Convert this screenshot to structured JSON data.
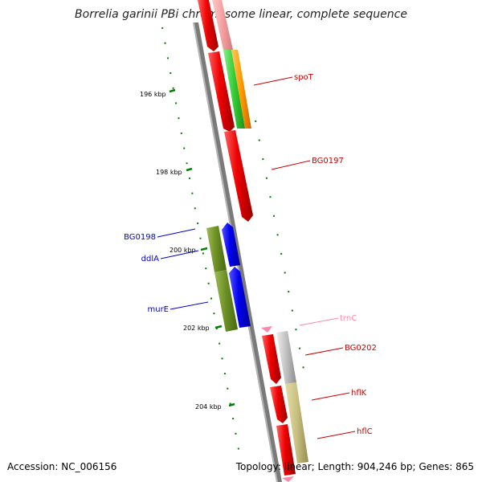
{
  "title": "Borrelia garinii PBi chromosome linear, complete sequence",
  "footer": {
    "accession": "Accession: NC_006156",
    "summary": "Topology: linear; Length: 904,246 bp; Genes: 865"
  },
  "ticks": [
    {
      "label": "196 kbp"
    },
    {
      "label": "198 kbp"
    },
    {
      "label": "200 kbp"
    },
    {
      "label": "202 kbp"
    },
    {
      "label": "204 kbp"
    }
  ],
  "gene_labels": [
    {
      "id": "spoT",
      "label": "spoT",
      "color": "#cc0000"
    },
    {
      "id": "BG0197",
      "label": "BG0197",
      "color": "#cc0000"
    },
    {
      "id": "BG0198",
      "label": "BG0198",
      "color": "#0000cc"
    },
    {
      "id": "ddlA",
      "label": "ddlA",
      "color": "#0000cc"
    },
    {
      "id": "murE",
      "label": "murE",
      "color": "#0000cc"
    },
    {
      "id": "trnC",
      "label": "trnC",
      "color": "#ff88aa"
    },
    {
      "id": "BG0202",
      "label": "BG0202",
      "color": "#cc0000"
    },
    {
      "id": "hflK",
      "label": "hflK",
      "color": "#cc0000"
    },
    {
      "id": "hflC",
      "label": "hflC",
      "color": "#cc0000"
    }
  ],
  "colors": {
    "backbone": "#808080",
    "cds_red": "#ee0000",
    "cds_blue": "#0000ee",
    "cog_olive": "#6b8e23",
    "cog_green": "#33cc33",
    "cog_orange": "#ff9900",
    "cog_pink": "#f4a0a0",
    "cog_grey": "#c0c0c0",
    "cog_khaki": "#c8c080",
    "trna_pink": "#ff88aa",
    "tick_green": "#008000"
  }
}
